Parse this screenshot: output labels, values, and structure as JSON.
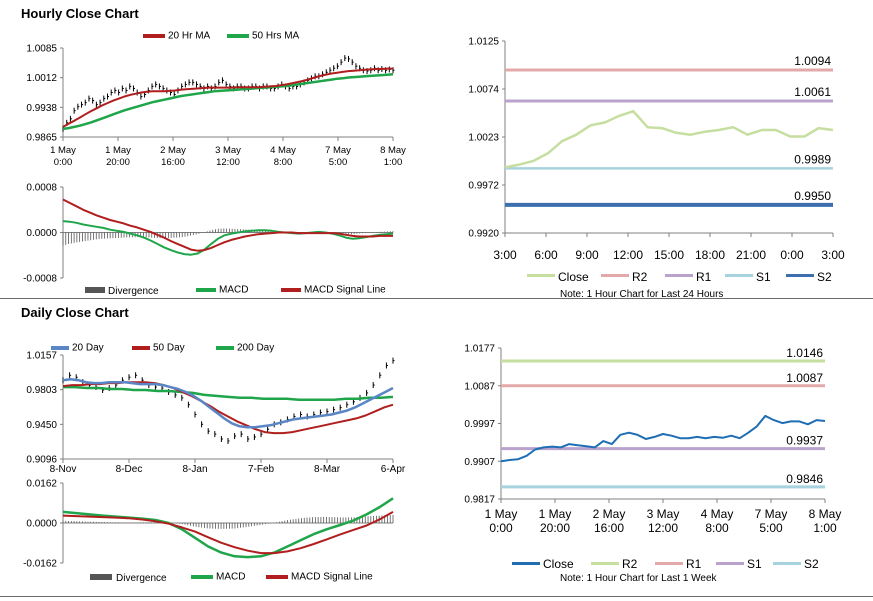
{
  "sections": {
    "hourly_title": "Hourly Close Chart",
    "daily_title": "Daily Close Chart"
  },
  "colors": {
    "ma_short": "#b01e1e",
    "ma_long": "#1fa54a",
    "ma_200": "#1fa54a",
    "ma_20d": "#5b86c5",
    "close_green": "#c6dea0",
    "close_blue": "#1f6db3",
    "r2_hourly": "#e3a9a9",
    "r1_hourly": "#b9a3cc",
    "s1_hourly": "#a6d3dd",
    "s2_hourly": "#3d6fb0",
    "r2_daily": "#c6dea0",
    "r1_daily": "#e3a9a9",
    "s1_daily": "#b9a3cc",
    "s2_daily": "#a6d3dd",
    "divergence": "#555555"
  },
  "chart_data": [
    {
      "id": "hourly_price",
      "type": "line",
      "title": "",
      "legend": [
        "20 Hr MA",
        "50 Hrs MA"
      ],
      "x_tick_labels": [
        [
          "1 May",
          "0:00"
        ],
        [
          "1 May",
          "20:00"
        ],
        [
          "2 May",
          "16:00"
        ],
        [
          "3 May",
          "12:00"
        ],
        [
          "4 May",
          "8:00"
        ],
        [
          "7 May",
          "5:00"
        ],
        [
          "8 May",
          "1:00"
        ]
      ],
      "y_tick_labels": [
        "1.0085",
        "1.0012",
        "0.9938",
        "0.9865"
      ],
      "ylim": [
        0.9865,
        1.0085
      ],
      "x_count": 120,
      "series": [
        {
          "name": "Close (bars)",
          "values": [
            0.9885,
            0.99,
            0.991,
            0.993,
            0.994,
            0.9945,
            0.995,
            0.996,
            0.9955,
            0.9945,
            0.995,
            0.996,
            0.9965,
            0.9975,
            0.998,
            0.9975,
            0.9985,
            0.998,
            0.999,
            0.9985,
            0.9975,
            0.9965,
            0.997,
            0.998,
            0.999,
            0.9995,
            0.999,
            0.9985,
            0.998,
            0.9975,
            0.997,
            0.998,
            0.999,
            0.9995,
            1.0,
            1.0,
            0.9995,
            0.999,
            0.9985,
            0.999,
            0.9985,
            0.999,
            1.0,
            1.0005,
            0.9995,
            0.999,
            0.9985,
            0.999,
            0.999,
            0.9985,
            0.9985,
            0.999,
            0.999,
            0.9985,
            0.999,
            0.999,
            0.9985,
            0.9985,
            0.999,
            0.9995,
            0.999,
            0.9985,
            0.999,
            0.999,
            0.9995,
            1.0,
            1.0005,
            1.001,
            1.0015,
            1.0015,
            1.002,
            1.0025,
            1.003,
            1.0035,
            1.004,
            1.005,
            1.006,
            1.0058,
            1.005,
            1.004,
            1.0035,
            1.003,
            1.0028,
            1.003,
            1.0035,
            1.003,
            1.0033,
            1.003,
            1.0032,
            1.003
          ]
        },
        {
          "name": "20 Hr MA",
          "values": [
            0.989,
            0.9898,
            0.9905,
            0.9913,
            0.9921,
            0.9929,
            0.9936,
            0.9943,
            0.9949,
            0.9955,
            0.996,
            0.9965,
            0.9969,
            0.9972,
            0.9975,
            0.9977,
            0.9978,
            0.9978,
            0.9978,
            0.9979,
            0.998,
            0.9982,
            0.9983,
            0.9984,
            0.9985,
            0.9986,
            0.9987,
            0.9987,
            0.9987,
            0.9987,
            0.9987,
            0.9988,
            0.9988,
            0.9988,
            0.9988,
            0.9988,
            0.9989,
            0.999,
            0.9991,
            0.9993,
            0.9995,
            0.9998,
            1.0001,
            1.0004,
            1.0008,
            1.0012,
            1.0016,
            1.0019,
            1.0022,
            1.0024,
            1.0026,
            1.0028,
            1.0029,
            1.003,
            1.0031,
            1.0032,
            1.0033,
            1.0033,
            1.0034,
            1.0034
          ]
        },
        {
          "name": "50 Hrs MA",
          "values": [
            0.9885,
            0.9887,
            0.989,
            0.9893,
            0.9897,
            0.9901,
            0.9906,
            0.9911,
            0.9916,
            0.9921,
            0.9926,
            0.9931,
            0.9935,
            0.9939,
            0.9943,
            0.9947,
            0.9951,
            0.9954,
            0.9957,
            0.996,
            0.9963,
            0.9966,
            0.9968,
            0.997,
            0.9972,
            0.9974,
            0.9976,
            0.9978,
            0.9979,
            0.998,
            0.9981,
            0.9982,
            0.9983,
            0.9984,
            0.9985,
            0.9986,
            0.9987,
            0.9988,
            0.9989,
            0.999,
            0.9991,
            0.9993,
            0.9995,
            0.9997,
            0.9999,
            1.0001,
            1.0003,
            1.0005,
            1.0007,
            1.0009,
            1.001,
            1.0012,
            1.0013,
            1.0014,
            1.0015,
            1.0016,
            1.0017,
            1.0018,
            1.0019,
            1.002
          ]
        }
      ]
    },
    {
      "id": "hourly_macd",
      "type": "line",
      "legend": [
        "Divergence",
        "MACD",
        "MACD Signal Line"
      ],
      "y_tick_labels": [
        "0.0008",
        "0.0000",
        "-0.0008"
      ],
      "ylim": [
        -0.0008,
        0.0008
      ],
      "series": [
        {
          "name": "MACD",
          "values": [
            0.0002,
            0.00019,
            0.00017,
            0.00014,
            0.00012,
            0.0001,
            8e-05,
            5e-05,
            3e-05,
            1e-05,
            -2e-05,
            -5e-05,
            -9e-05,
            -0.00014,
            -0.0002,
            -0.00026,
            -0.00031,
            -0.00035,
            -0.00038,
            -0.00039,
            -0.00037,
            -0.0003,
            -0.0002,
            -0.00011,
            -5e-05,
            -2e-05,
            0.0,
            2e-05,
            3e-05,
            4e-05,
            4e-05,
            3e-05,
            1e-05,
            0.0,
            -1e-05,
            -2e-05,
            -1e-05,
            0.0,
            1e-05,
            0.0,
            -2e-05,
            -5e-05,
            -9e-05,
            -0.00011,
            -0.0001,
            -8e-05,
            -6e-05,
            -4e-05,
            -3e-05,
            -2e-05
          ]
        },
        {
          "name": "MACD Signal Line",
          "values": [
            0.00058,
            0.00052,
            0.00046,
            0.0004,
            0.00035,
            0.0003,
            0.00026,
            0.00022,
            0.00019,
            0.00016,
            0.00012,
            9e-05,
            5e-05,
            1e-05,
            -4e-05,
            -9e-05,
            -0.00015,
            -0.0002,
            -0.00025,
            -0.0003,
            -0.00032,
            -0.00031,
            -0.00027,
            -0.00022,
            -0.00017,
            -0.00013,
            -0.0001,
            -7e-05,
            -5e-05,
            -3e-05,
            -2e-05,
            -1e-05,
            0.0,
            0.0,
            0.0,
            -1e-05,
            -1e-05,
            -1e-05,
            -1e-05,
            -1e-05,
            -1e-05,
            -2e-05,
            -4e-05,
            -6e-05,
            -7e-05,
            -7e-05,
            -7e-05,
            -6e-05,
            -6e-05,
            -6e-05
          ]
        }
      ]
    },
    {
      "id": "hourly_levels",
      "type": "line",
      "title": "",
      "x_tick_labels": [
        "3:00",
        "6:00",
        "9:00",
        "12:00",
        "15:00",
        "18:00",
        "21:00",
        "0:00",
        "3:00"
      ],
      "y_tick_labels": [
        "1.0125",
        "1.0074",
        "1.0023",
        "0.9972",
        "0.9920"
      ],
      "ylim": [
        0.992,
        1.0125
      ],
      "levels": [
        {
          "name": "R2",
          "value": 1.0094,
          "label": "1.0094"
        },
        {
          "name": "R1",
          "value": 1.0061,
          "label": "1.0061"
        },
        {
          "name": "S1",
          "value": 0.9989,
          "label": "0.9989"
        },
        {
          "name": "S2",
          "value": 0.995,
          "label": "0.9950"
        }
      ],
      "series": [
        {
          "name": "Close",
          "values": [
            0.999,
            0.9993,
            0.9997,
            1.0005,
            1.0018,
            1.0025,
            1.0035,
            1.0038,
            1.0045,
            1.005,
            1.0033,
            1.0032,
            1.0027,
            1.0025,
            1.0028,
            1.003,
            1.0033,
            1.0025,
            1.003,
            1.003,
            1.0023,
            1.0023,
            1.0032,
            1.003
          ]
        }
      ],
      "legend": [
        "Close",
        "R2",
        "R1",
        "S1",
        "S2"
      ],
      "note": "Note: 1 Hour Chart for Last 24 Hours"
    },
    {
      "id": "daily_price",
      "type": "line",
      "legend": [
        "20 Day",
        "50 Day",
        "200 Day"
      ],
      "x_tick_labels": [
        "8-Nov",
        "8-Dec",
        "8-Jan",
        "7-Feb",
        "8-Mar",
        "6-Apr"
      ],
      "y_tick_labels": [
        "1.0157",
        "0.9803",
        "0.9450",
        "0.9096"
      ],
      "ylim": [
        0.9096,
        1.0157
      ],
      "series": [
        {
          "name": "Close (bars)",
          "values": [
            0.99,
            0.995,
            0.993,
            0.988,
            0.985,
            0.983,
            0.98,
            0.982,
            0.985,
            0.99,
            0.993,
            0.995,
            0.99,
            0.985,
            0.983,
            0.982,
            0.978,
            0.975,
            0.972,
            0.965,
            0.955,
            0.945,
            0.938,
            0.935,
            0.93,
            0.928,
            0.933,
            0.935,
            0.93,
            0.932,
            0.935,
            0.94,
            0.945,
            0.947,
            0.95,
            0.953,
            0.955,
            0.953,
            0.955,
            0.957,
            0.958,
            0.96,
            0.962,
            0.965,
            0.968,
            0.972,
            0.977,
            0.985,
            0.995,
            1.005,
            1.01
          ]
        },
        {
          "name": "20 Day",
          "values": [
            0.99,
            0.991,
            0.99,
            0.988,
            0.987,
            0.987,
            0.988,
            0.988,
            0.988,
            0.987,
            0.986,
            0.986,
            0.986,
            0.985,
            0.983,
            0.981,
            0.978,
            0.974,
            0.969,
            0.963,
            0.957,
            0.951,
            0.946,
            0.943,
            0.942,
            0.942,
            0.943,
            0.944,
            0.946,
            0.948,
            0.95,
            0.951,
            0.952,
            0.953,
            0.954,
            0.955,
            0.957,
            0.959,
            0.962,
            0.966,
            0.97,
            0.974,
            0.978,
            0.982
          ]
        },
        {
          "name": "50 Day",
          "values": [
            0.984,
            0.985,
            0.985,
            0.986,
            0.986,
            0.987,
            0.987,
            0.988,
            0.988,
            0.988,
            0.987,
            0.985,
            0.982,
            0.978,
            0.974,
            0.969,
            0.964,
            0.958,
            0.953,
            0.948,
            0.944,
            0.94,
            0.937,
            0.936,
            0.936,
            0.937,
            0.939,
            0.941,
            0.943,
            0.945,
            0.947,
            0.949,
            0.951,
            0.954,
            0.958,
            0.962,
            0.965
          ]
        },
        {
          "name": "200 Day",
          "values": [
            0.983,
            0.983,
            0.982,
            0.982,
            0.981,
            0.981,
            0.98,
            0.98,
            0.979,
            0.979,
            0.978,
            0.977,
            0.975,
            0.974,
            0.973,
            0.972,
            0.972,
            0.971,
            0.971,
            0.971,
            0.97,
            0.97,
            0.97,
            0.97,
            0.971,
            0.971,
            0.972,
            0.972,
            0.973
          ]
        }
      ]
    },
    {
      "id": "daily_macd",
      "type": "line",
      "legend": [
        "Divergence",
        "MACD",
        "MACD Signal Line"
      ],
      "y_tick_labels": [
        "0.0162",
        "0.0000",
        "-0.0162"
      ],
      "ylim": [
        -0.0162,
        0.0162
      ],
      "series": [
        {
          "name": "MACD",
          "values": [
            0.0045,
            0.004,
            0.0035,
            0.003,
            0.0026,
            0.0022,
            0.0018,
            0.0012,
            0.0,
            -0.0025,
            -0.006,
            -0.0095,
            -0.012,
            -0.0135,
            -0.0138,
            -0.0135,
            -0.012,
            -0.0095,
            -0.007,
            -0.0045,
            -0.0025,
            -0.0008,
            0.001,
            0.0035,
            0.0065,
            0.01
          ]
        },
        {
          "name": "MACD Signal Line",
          "values": [
            0.003,
            0.0028,
            0.0026,
            0.0024,
            0.0022,
            0.0019,
            0.0014,
            0.0007,
            -0.0003,
            -0.0018,
            -0.0035,
            -0.0058,
            -0.008,
            -0.0098,
            -0.0112,
            -0.0122,
            -0.0122,
            -0.0115,
            -0.0102,
            -0.0085,
            -0.0066,
            -0.0046,
            -0.0028,
            -0.001,
            0.0015,
            0.0045
          ]
        }
      ]
    },
    {
      "id": "daily_levels",
      "type": "line",
      "x_tick_labels": [
        [
          "1 May",
          "0:00"
        ],
        [
          "1 May",
          "20:00"
        ],
        [
          "2 May",
          "16:00"
        ],
        [
          "3 May",
          "12:00"
        ],
        [
          "4 May",
          "8:00"
        ],
        [
          "7 May",
          "5:00"
        ],
        [
          "8 May",
          "1:00"
        ]
      ],
      "y_tick_labels": [
        "1.0177",
        "1.0087",
        "0.9997",
        "0.9907",
        "0.9817"
      ],
      "ylim": [
        0.9817,
        1.0177
      ],
      "levels": [
        {
          "name": "R2",
          "value": 1.0146,
          "label": "1.0146"
        },
        {
          "name": "R1",
          "value": 1.0087,
          "label": "1.0087"
        },
        {
          "name": "S1",
          "value": 0.9937,
          "label": "0.9937"
        },
        {
          "name": "S2",
          "value": 0.9846,
          "label": "0.9846"
        }
      ],
      "series": [
        {
          "name": "Close",
          "values": [
            0.9907,
            0.991,
            0.9912,
            0.992,
            0.9935,
            0.994,
            0.9942,
            0.994,
            0.9948,
            0.9945,
            0.9943,
            0.994,
            0.9955,
            0.9948,
            0.997,
            0.9975,
            0.997,
            0.996,
            0.9965,
            0.9972,
            0.9968,
            0.9962,
            0.9962,
            0.9965,
            0.9962,
            0.9965,
            0.9963,
            0.9968,
            0.9962,
            0.9975,
            0.999,
            1.0015,
            1.0005,
            0.9998,
            1.0002,
            1.0002,
            0.9995,
            1.0005,
            1.0003
          ]
        }
      ],
      "legend": [
        "Close",
        "R2",
        "R1",
        "S1",
        "S2"
      ],
      "note": "Note: 1 Hour Chart for Last 1 Week"
    }
  ]
}
